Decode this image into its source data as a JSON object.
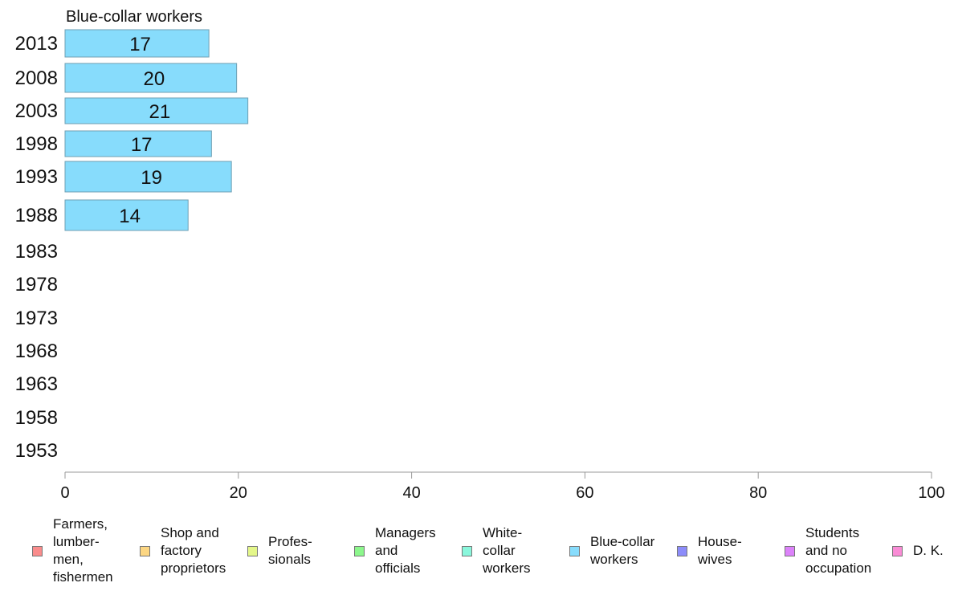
{
  "chart_data": {
    "type": "bar",
    "orientation": "horizontal",
    "title": "Blue-collar workers",
    "xlabel": "",
    "ylabel": "",
    "categories": [
      "2013",
      "2008",
      "2003",
      "1998",
      "1993",
      "1988",
      "1983",
      "1978",
      "1973",
      "1968",
      "1963",
      "1958",
      "1953"
    ],
    "series": [
      {
        "name": "Blue-collar workers",
        "color": "#87dcfc",
        "values": [
          16.6,
          19.8,
          21.1,
          16.9,
          19.2,
          14.2,
          null,
          null,
          null,
          null,
          null,
          null,
          null
        ],
        "labels": [
          "17",
          "20",
          "21",
          "17",
          "19",
          "14",
          "",
          "",
          "",
          "",
          "",
          "",
          ""
        ]
      }
    ],
    "xlim": [
      0,
      100
    ],
    "xticks": [
      "0",
      "20",
      "40",
      "60",
      "80",
      "100"
    ],
    "grid": false,
    "legend_placement": "bottom"
  },
  "legend": [
    {
      "label": "Farmers,\nlumber-\nmen,\nfishermen",
      "color": "#fa8c8c"
    },
    {
      "label": "Shop and\nfactory\nproprietors",
      "color": "#fcd682"
    },
    {
      "label": "Profes-\nsionals",
      "color": "#e4f78a"
    },
    {
      "label": "Managers\nand\nofficials",
      "color": "#8cf78c"
    },
    {
      "label": "White-\ncollar\nworkers",
      "color": "#8af7dc"
    },
    {
      "label": "Blue-collar\nworkers",
      "color": "#87dcfc"
    },
    {
      "label": "House-\nwives",
      "color": "#8c8cfa"
    },
    {
      "label": "Students\nand no\noccupation",
      "color": "#dc82fa"
    },
    {
      "label": "D. K.",
      "color": "#fa8cd6"
    }
  ]
}
